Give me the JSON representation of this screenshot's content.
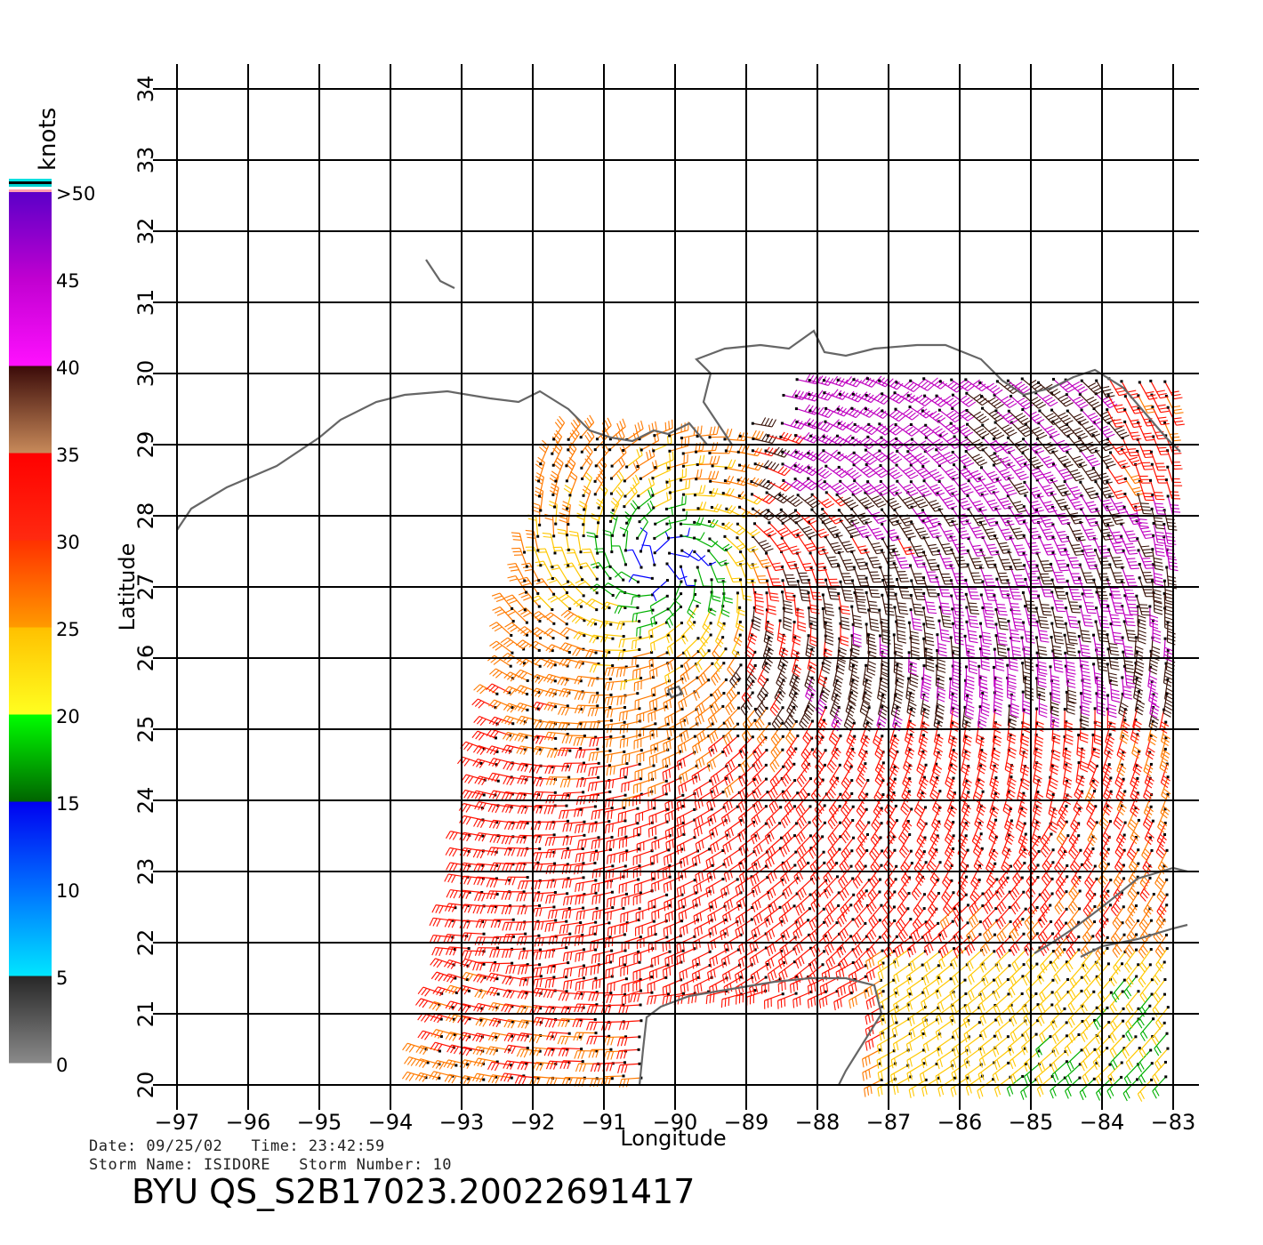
{
  "map": {
    "x_label": "Longitude",
    "y_label": "Latitude",
    "lon_ticks": [
      -97,
      -96,
      -95,
      -94,
      -93,
      -92,
      -91,
      -90,
      -89,
      -88,
      -87,
      -86,
      -85,
      -84,
      -83
    ],
    "lat_ticks": [
      20,
      21,
      22,
      23,
      24,
      25,
      26,
      27,
      28,
      29,
      30,
      31,
      32,
      33,
      34
    ],
    "lon_range": [
      -97,
      -83
    ],
    "lat_range": [
      20,
      34
    ],
    "coastline_color": "#666666",
    "storm_center": {
      "lon": -90.2,
      "lat": 27.3
    }
  },
  "colorbar": {
    "unit": "knots",
    "labels": [
      "0",
      "5",
      "10",
      "15",
      "20",
      "25",
      "30",
      "35",
      "40",
      "45",
      ">50"
    ],
    "bands": [
      {
        "from": 0,
        "to": 5,
        "colors": [
          "#8a8a8a",
          "#262626"
        ]
      },
      {
        "from": 5,
        "to": 10,
        "colors": [
          "#00e6ff",
          "#0070ff"
        ]
      },
      {
        "from": 10,
        "to": 15,
        "colors": [
          "#0070ff",
          "#0000f0"
        ]
      },
      {
        "from": 15,
        "to": 20,
        "colors": [
          "#006400",
          "#00ff00"
        ]
      },
      {
        "from": 20,
        "to": 25,
        "colors": [
          "#ffff20",
          "#ffc000"
        ]
      },
      {
        "from": 25,
        "to": 30,
        "colors": [
          "#ff9a00",
          "#ff3000"
        ]
      },
      {
        "from": 30,
        "to": 35,
        "colors": [
          "#ff2a10",
          "#ff0000"
        ]
      },
      {
        "from": 35,
        "to": 40,
        "colors": [
          "#c88a5a",
          "#3a0a08"
        ]
      },
      {
        "from": 40,
        "to": 45,
        "colors": [
          "#ff10ff",
          "#c000d0"
        ]
      },
      {
        "from": 45,
        "to": 50,
        "colors": [
          "#c000d0",
          "#5a00c8"
        ]
      }
    ]
  },
  "wind_field": {
    "note_colors": {
      "calm": "#0000ff",
      "light": "#00c000",
      "moderate": "#ffd000",
      "fresh": "#ff8000",
      "strong": "#ff0000",
      "gale": "#000000",
      "storm": "#c000c0"
    }
  },
  "info": {
    "date_line": "Date: 09/25/02   Time: 23:42:59",
    "storm_line": "Storm Name: ISIDORE   Storm Number: 10",
    "product": "BYU QS_S2B17023.20022691417"
  }
}
